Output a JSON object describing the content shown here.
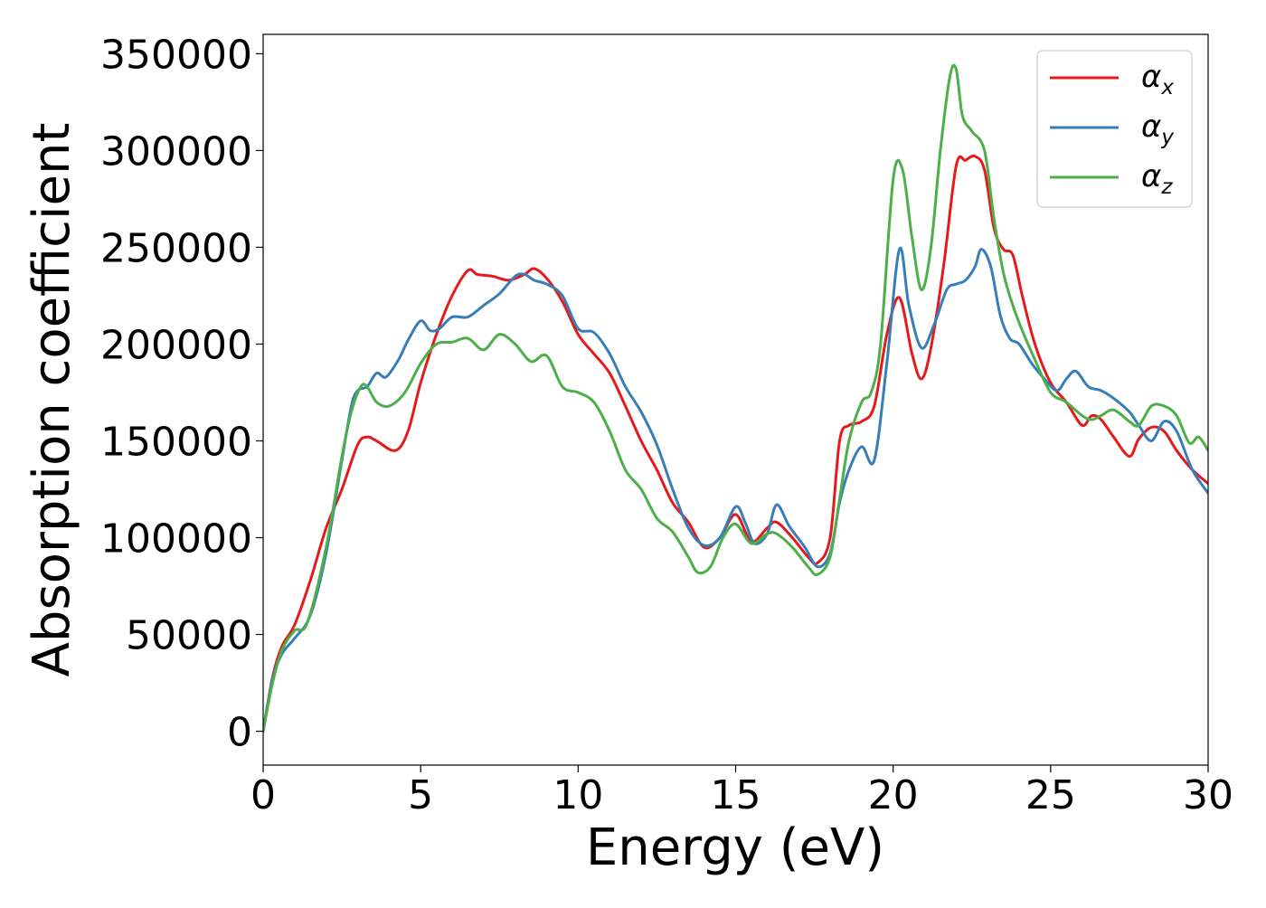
{
  "chart_data": {
    "type": "line",
    "title": "",
    "xlabel": "Energy (eV)",
    "ylabel": "Absorption coefficient",
    "xlim": [
      0,
      30
    ],
    "ylim": [
      -17500,
      360000
    ],
    "xticks": [
      0,
      5,
      10,
      15,
      20,
      25,
      30
    ],
    "yticks": [
      0,
      50000,
      100000,
      150000,
      200000,
      250000,
      300000,
      350000
    ],
    "xtick_labels": [
      "0",
      "5",
      "10",
      "15",
      "20",
      "25",
      "30"
    ],
    "ytick_labels": [
      "0",
      "50000",
      "100000",
      "150000",
      "200000",
      "250000",
      "300000",
      "350000"
    ],
    "grid": false,
    "legend_position": "top-right",
    "series": [
      {
        "name": "αx",
        "symbol": "α",
        "subscript": "x",
        "color": "#e41a1c",
        "x": [
          0,
          0.3,
          0.6,
          1.0,
          1.5,
          2.0,
          2.5,
          3.0,
          3.3,
          3.6,
          4.2,
          4.6,
          5.0,
          5.5,
          6.0,
          6.5,
          6.8,
          7.3,
          7.8,
          8.3,
          8.6,
          9.0,
          9.5,
          10.0,
          10.5,
          11.0,
          11.5,
          12.0,
          12.5,
          13.0,
          13.5,
          14.0,
          14.5,
          15.0,
          15.5,
          16.0,
          16.3,
          16.8,
          17.3,
          17.6,
          18.0,
          18.3,
          18.6,
          19.0,
          19.4,
          19.8,
          20.2,
          20.6,
          20.9,
          21.2,
          21.6,
          22.0,
          22.3,
          22.6,
          22.9,
          23.2,
          23.5,
          23.8,
          24.1,
          24.5,
          25.0,
          25.5,
          26.0,
          26.3,
          26.6,
          27.0,
          27.5,
          27.8,
          28.2,
          28.6,
          29.0,
          29.5,
          30.0
        ],
        "values": [
          0,
          28000,
          44000,
          55000,
          78000,
          105000,
          125000,
          148000,
          152000,
          150000,
          145000,
          155000,
          180000,
          205000,
          225000,
          238000,
          236000,
          235000,
          233000,
          236000,
          239000,
          234000,
          222000,
          205000,
          195000,
          185000,
          168000,
          150000,
          135000,
          118000,
          108000,
          95000,
          100000,
          112000,
          98000,
          105000,
          108000,
          100000,
          90000,
          87000,
          100000,
          150000,
          158000,
          160000,
          168000,
          205000,
          224000,
          195000,
          182000,
          198000,
          240000,
          292000,
          295000,
          297000,
          290000,
          260000,
          249000,
          246000,
          225000,
          200000,
          180000,
          170000,
          158000,
          163000,
          161000,
          152000,
          142000,
          151000,
          157000,
          155000,
          145000,
          135000,
          128000
        ]
      },
      {
        "name": "αy",
        "symbol": "α",
        "subscript": "y",
        "color": "#377eb8",
        "x": [
          0,
          0.3,
          0.6,
          1.0,
          1.5,
          2.0,
          2.5,
          2.8,
          3.0,
          3.3,
          3.6,
          3.9,
          4.3,
          4.6,
          5.0,
          5.3,
          5.6,
          6.0,
          6.5,
          7.0,
          7.5,
          8.0,
          8.3,
          8.6,
          9.0,
          9.5,
          10.0,
          10.5,
          11.0,
          11.5,
          12.0,
          12.5,
          13.0,
          13.5,
          14.0,
          14.5,
          15.0,
          15.3,
          15.6,
          16.0,
          16.3,
          16.7,
          17.2,
          17.6,
          18.0,
          18.3,
          18.6,
          19.0,
          19.4,
          19.8,
          20.2,
          20.5,
          20.9,
          21.3,
          21.7,
          22.0,
          22.3,
          22.6,
          22.8,
          23.1,
          23.4,
          23.7,
          24.0,
          24.4,
          24.8,
          25.2,
          25.5,
          25.8,
          26.2,
          26.6,
          27.0,
          27.5,
          27.8,
          28.2,
          28.6,
          29.0,
          29.5,
          30.0
        ],
        "values": [
          0,
          27000,
          40000,
          48000,
          60000,
          92000,
          140000,
          168000,
          176000,
          178000,
          185000,
          183000,
          192000,
          202000,
          212000,
          207000,
          208000,
          214000,
          214000,
          220000,
          226000,
          235000,
          236000,
          233000,
          231000,
          225000,
          208000,
          206000,
          195000,
          178000,
          165000,
          148000,
          125000,
          105000,
          96000,
          100000,
          116000,
          108000,
          97000,
          102000,
          117000,
          106000,
          95000,
          85000,
          92000,
          118000,
          135000,
          147000,
          140000,
          190000,
          249000,
          220000,
          198000,
          210000,
          228000,
          231000,
          233000,
          240000,
          249000,
          240000,
          215000,
          203000,
          200000,
          190000,
          182000,
          176000,
          182000,
          186000,
          178000,
          176000,
          172000,
          165000,
          158000,
          150000,
          160000,
          155000,
          135000,
          123000
        ]
      },
      {
        "name": "αz",
        "symbol": "α",
        "subscript": "z",
        "color": "#4daf4a",
        "x": [
          0,
          0.3,
          0.6,
          1.0,
          1.4,
          2.0,
          2.5,
          2.8,
          3.1,
          3.3,
          3.6,
          4.0,
          4.5,
          5.0,
          5.5,
          6.0,
          6.5,
          7.0,
          7.5,
          8.0,
          8.5,
          9.0,
          9.5,
          10.0,
          10.5,
          11.0,
          11.5,
          12.0,
          12.5,
          13.0,
          13.5,
          13.8,
          14.2,
          14.6,
          15.0,
          15.5,
          16.0,
          16.3,
          16.8,
          17.3,
          17.6,
          18.0,
          18.3,
          18.6,
          19.0,
          19.3,
          19.6,
          20.0,
          20.3,
          20.6,
          20.9,
          21.2,
          21.5,
          21.8,
          22.0,
          22.2,
          22.5,
          22.9,
          23.2,
          23.5,
          23.8,
          24.1,
          24.5,
          25.0,
          25.5,
          26.0,
          26.3,
          26.6,
          27.0,
          27.5,
          27.8,
          28.2,
          28.6,
          29.0,
          29.4,
          29.7,
          30.0
        ],
        "values": [
          0,
          25000,
          42000,
          52000,
          56000,
          95000,
          142000,
          165000,
          178000,
          178000,
          170000,
          168000,
          175000,
          190000,
          200000,
          201000,
          203000,
          197000,
          205000,
          200000,
          191000,
          194000,
          178000,
          175000,
          170000,
          155000,
          135000,
          125000,
          110000,
          103000,
          90000,
          82000,
          85000,
          100000,
          107000,
          97000,
          102000,
          102000,
          95000,
          85000,
          81000,
          90000,
          120000,
          150000,
          170000,
          175000,
          200000,
          285000,
          290000,
          255000,
          228000,
          250000,
          300000,
          338000,
          342000,
          318000,
          310000,
          300000,
          265000,
          237000,
          220000,
          207000,
          192000,
          175000,
          170000,
          163000,
          161000,
          163000,
          166000,
          160000,
          158000,
          168000,
          168000,
          163000,
          149000,
          152000,
          145000
        ]
      }
    ]
  }
}
